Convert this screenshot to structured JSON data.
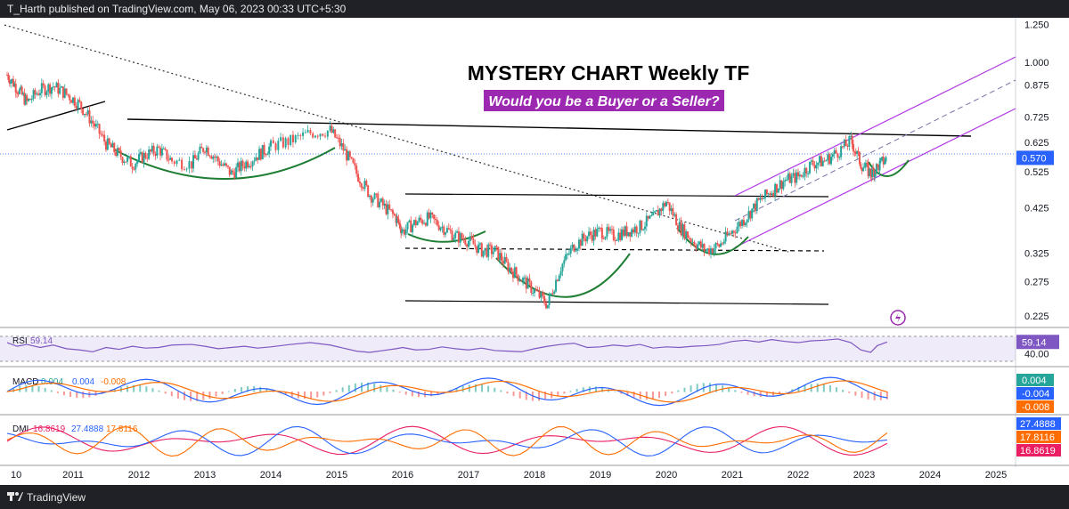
{
  "header": {
    "publisher_text": "T_Harth published on TradingView.com, May 06, 2023 00:33 UTC+5:30"
  },
  "footer": {
    "brand": "TradingView"
  },
  "annotations": {
    "title": "MYSTERY CHART Weekly TF",
    "subtitle": "Would you be a Buyer or a Seller?"
  },
  "colors": {
    "rsi": "#7e57c2",
    "macd": "#2962ff",
    "signal": "#ff6d00",
    "channel": "#b23ae6",
    "cup": "#1e7e34",
    "text_bg": "#9c27b0"
  },
  "chart_data": [
    {
      "type": "line",
      "title": "MYSTERY CHART Weekly TF",
      "x_ticks": [
        "10",
        "2011",
        "2012",
        "2013",
        "2014",
        "2015",
        "2016",
        "2017",
        "2018",
        "2019",
        "2020",
        "2021",
        "2022",
        "2023",
        "2024",
        "2025"
      ],
      "y_scale": "log",
      "y_ticks": [
        "1.250",
        "1.000",
        "0.875",
        "0.725",
        "0.625",
        "0.525",
        "0.425",
        "0.325",
        "0.275",
        "0.225"
      ],
      "last_price": "0.570",
      "ylim": [
        0.21,
        1.3
      ],
      "x": [
        2010.0,
        2010.15,
        2010.3,
        2010.5,
        2010.7,
        2010.9,
        2011.1,
        2011.3,
        2011.5,
        2011.7,
        2011.9,
        2012.1,
        2012.3,
        2012.5,
        2012.8,
        2013.0,
        2013.2,
        2013.4,
        2013.6,
        2013.8,
        2014.0,
        2014.3,
        2014.6,
        2014.9,
        2015.1,
        2015.3,
        2015.5,
        2015.7,
        2015.9,
        2016.0,
        2016.2,
        2016.4,
        2016.6,
        2016.8,
        2017.0,
        2017.2,
        2017.4,
        2017.6,
        2017.8,
        2018.0,
        2018.2,
        2018.4,
        2018.6,
        2018.8,
        2019.0,
        2019.2,
        2019.4,
        2019.6,
        2019.8,
        2020.0,
        2020.2,
        2020.4,
        2020.6,
        2020.8,
        2021.0,
        2021.2,
        2021.4,
        2021.6,
        2021.8,
        2022.0,
        2022.2,
        2022.4,
        2022.6,
        2022.8,
        2022.95,
        2023.1,
        2023.2,
        2023.35
      ],
      "y": [
        0.93,
        0.86,
        0.79,
        0.85,
        0.87,
        0.83,
        0.78,
        0.7,
        0.62,
        0.58,
        0.55,
        0.58,
        0.6,
        0.56,
        0.55,
        0.61,
        0.56,
        0.52,
        0.55,
        0.58,
        0.61,
        0.63,
        0.66,
        0.67,
        0.6,
        0.52,
        0.46,
        0.43,
        0.4,
        0.37,
        0.39,
        0.4,
        0.38,
        0.36,
        0.35,
        0.33,
        0.33,
        0.3,
        0.28,
        0.26,
        0.24,
        0.3,
        0.34,
        0.36,
        0.37,
        0.36,
        0.37,
        0.38,
        0.4,
        0.44,
        0.38,
        0.35,
        0.33,
        0.34,
        0.37,
        0.4,
        0.44,
        0.47,
        0.5,
        0.51,
        0.55,
        0.56,
        0.59,
        0.63,
        0.55,
        0.52,
        0.54,
        0.57
      ]
    },
    {
      "type": "line",
      "name": "RSI",
      "legend_values": [
        "59.14"
      ],
      "y_ticks": [
        "40.00"
      ],
      "last_value": "59.14",
      "ylim": [
        20,
        80
      ],
      "values": [
        58,
        52,
        55,
        50,
        54,
        48,
        46,
        43,
        50,
        47,
        52,
        49,
        50,
        54,
        55,
        52,
        48,
        50,
        52,
        49,
        51,
        55,
        58,
        54,
        49,
        44,
        42,
        45,
        48,
        50,
        46,
        47,
        51,
        48,
        46,
        49,
        45,
        44,
        43,
        48,
        52,
        55,
        57,
        50,
        51,
        54,
        52,
        55,
        49,
        51,
        50,
        52,
        53,
        55,
        60,
        62,
        59,
        63,
        60,
        58,
        61,
        62,
        64,
        58,
        46,
        42,
        53,
        59
      ]
    },
    {
      "type": "line",
      "name": "MACD",
      "legend_values": [
        "0.004",
        "0.004",
        "-0.008"
      ],
      "values_right": [
        "0.004",
        "-0.004",
        "-0.008"
      ],
      "ylim": [
        -0.05,
        0.05
      ]
    },
    {
      "type": "line",
      "name": "DMI",
      "legend_values": [
        "16.8619",
        "27.4888",
        "17.8116"
      ],
      "values_right": [
        "27.4888",
        "17.8116",
        "16.8619"
      ],
      "ylim": [
        0,
        50
      ]
    }
  ]
}
